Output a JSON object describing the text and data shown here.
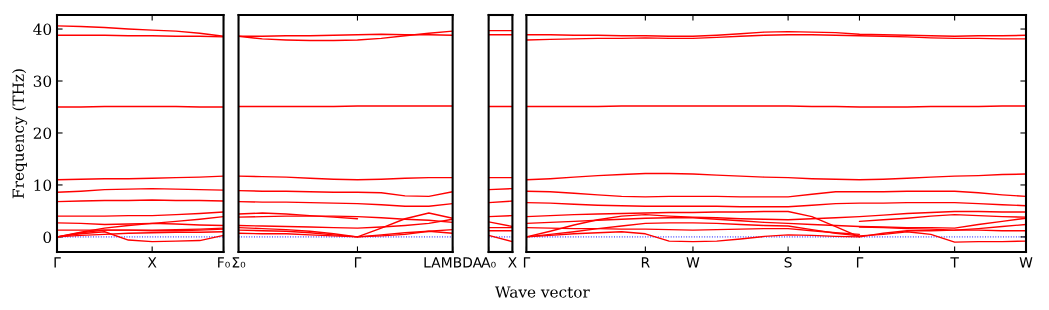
{
  "chart_data": [
    {
      "type": "line",
      "ylabel": "Frequency (THz)",
      "ylim": [
        -2.9,
        42.7
      ],
      "yticks": [
        0,
        10,
        20,
        30,
        40
      ],
      "categories": [
        "Γ",
        null,
        null,
        null,
        "X",
        null,
        null,
        "F₀"
      ],
      "ref_lines": [
        {
          "axis": "y",
          "value": 0,
          "color": "#0000ff",
          "line_style": "dotted"
        }
      ],
      "series": [
        {
          "color": "#ff0000",
          "values": [
            40.6,
            40.5,
            40.3,
            40.0,
            39.8,
            39.6,
            39.2,
            38.6
          ]
        },
        {
          "color": "#ff0000",
          "values": [
            38.8,
            38.8,
            38.8,
            38.7,
            38.7,
            38.6,
            38.6,
            38.5
          ]
        },
        {
          "color": "#ff0000",
          "values": [
            25.0,
            25.0,
            25.1,
            25.1,
            25.1,
            25.1,
            25.0,
            25.0
          ]
        },
        {
          "color": "#ff0000",
          "values": [
            11.0,
            11.1,
            11.2,
            11.2,
            11.3,
            11.4,
            11.5,
            11.7
          ]
        },
        {
          "color": "#ff0000",
          "values": [
            8.6,
            8.8,
            9.1,
            9.2,
            9.3,
            9.2,
            9.1,
            9.0
          ]
        },
        {
          "color": "#ff0000",
          "values": [
            6.8,
            6.9,
            7.0,
            7.0,
            7.1,
            7.0,
            7.0,
            6.9
          ]
        },
        {
          "color": "#ff0000",
          "values": [
            4.0,
            4.0,
            4.0,
            4.1,
            4.1,
            4.3,
            4.5,
            4.8
          ]
        },
        {
          "color": "#ff0000",
          "values": [
            2.7,
            2.6,
            2.4,
            2.5,
            2.6,
            2.5,
            2.3,
            2.2
          ]
        },
        {
          "color": "#ff0000",
          "values": [
            0,
            0.9,
            1.7,
            2.2,
            2.6,
            3.0,
            3.4,
            3.9
          ]
        },
        {
          "color": "#ff0000",
          "values": [
            1.3,
            1.3,
            1.3,
            1.3,
            1.3,
            1.4,
            1.5,
            1.7
          ]
        },
        {
          "color": "#ff0000",
          "values": [
            0,
            0.8,
            1.3,
            1.3,
            1.2,
            1.2,
            1.3,
            1.5
          ]
        },
        {
          "color": "#ff0000",
          "values": [
            0,
            0.6,
            1.0,
            -0.6,
            -0.9,
            -0.8,
            -0.7,
            0.3
          ]
        },
        {
          "color": "#ff0000",
          "values": [
            0,
            0.3,
            0.5,
            0.7,
            0.8,
            0.9,
            0.9,
            1.0
          ]
        }
      ]
    },
    {
      "type": "line",
      "ylim": [
        -2.9,
        42.7
      ],
      "yticks": [
        0,
        10,
        20,
        30,
        40
      ],
      "tick_labels": "x",
      "categories": [
        "Σ₀",
        null,
        null,
        null,
        null,
        "Γ",
        null,
        null,
        null,
        "LAMBDA"
      ],
      "ref_lines": [
        {
          "axis": "y",
          "value": 0,
          "color": "#0000ff",
          "line_style": "dotted"
        }
      ],
      "series": [
        {
          "color": "#ff0000",
          "values": [
            38.6,
            38.1,
            37.9,
            37.8,
            37.8,
            37.9,
            38.2,
            38.7,
            39.2,
            39.6
          ]
        },
        {
          "color": "#ff0000",
          "values": [
            38.6,
            38.6,
            38.7,
            38.7,
            38.8,
            38.9,
            39.0,
            38.9,
            38.9,
            38.8
          ]
        },
        {
          "color": "#ff0000",
          "values": [
            25.1,
            25.1,
            25.1,
            25.1,
            25.1,
            25.2,
            25.2,
            25.2,
            25.2,
            25.2
          ]
        },
        {
          "color": "#ff0000",
          "values": [
            11.7,
            11.6,
            11.5,
            11.3,
            11.1,
            11.0,
            11.1,
            11.3,
            11.4,
            11.4
          ]
        },
        {
          "color": "#ff0000",
          "values": [
            8.9,
            8.8,
            8.8,
            8.7,
            8.6,
            8.6,
            8.5,
            7.9,
            7.8,
            8.7
          ]
        },
        {
          "color": "#ff0000",
          "values": [
            6.8,
            6.7,
            6.7,
            6.6,
            6.5,
            6.4,
            6.2,
            5.9,
            5.9,
            6.4
          ]
        },
        {
          "color": "#ff0000",
          "values": [
            4.4,
            4.6,
            4.4,
            4.1,
            3.8,
            3.5,
            null,
            null,
            null,
            null
          ]
        },
        {
          "color": "#ff0000",
          "values": [
            3.8,
            3.9,
            4.0,
            4.0,
            4.0,
            3.9,
            3.7,
            3.4,
            3.2,
            2.8
          ]
        },
        {
          "color": "#ff0000",
          "values": [
            2.2,
            2.1,
            2.0,
            1.9,
            1.8,
            1.7,
            1.9,
            2.2,
            2.6,
            3.4
          ]
        },
        {
          "color": "#ff0000",
          "values": [
            1.8,
            1.6,
            1.4,
            1.1,
            0.6,
            0,
            1.7,
            3.5,
            4.6,
            3.6
          ]
        },
        {
          "color": "#ff0000",
          "values": [
            1.3,
            1.2,
            1.1,
            0.8,
            0.4,
            0,
            0.4,
            0.8,
            1.1,
            0.7
          ]
        },
        {
          "color": "#ff0000",
          "values": [
            0.7,
            0.6,
            0.6,
            0.4,
            0.2,
            0,
            0.2,
            0.5,
            1.1,
            1.4
          ]
        }
      ]
    },
    {
      "type": "line",
      "ylim": [
        -2.9,
        42.7
      ],
      "yticks": [
        0,
        10,
        20,
        30,
        40
      ],
      "tick_labels": "x",
      "categories": [
        "A₀",
        "X"
      ],
      "ref_lines": [
        {
          "axis": "y",
          "value": 0,
          "color": "#0000ff",
          "line_style": "dotted"
        }
      ],
      "series": [
        {
          "color": "#ff0000",
          "values": [
            39.7,
            39.7
          ]
        },
        {
          "color": "#ff0000",
          "values": [
            38.9,
            38.9
          ]
        },
        {
          "color": "#ff0000",
          "values": [
            25.1,
            25.1
          ]
        },
        {
          "color": "#ff0000",
          "values": [
            11.4,
            11.4
          ]
        },
        {
          "color": "#ff0000",
          "values": [
            9.1,
            9.3
          ]
        },
        {
          "color": "#ff0000",
          "values": [
            6.6,
            6.9
          ]
        },
        {
          "color": "#ff0000",
          "values": [
            3.9,
            4.1
          ]
        },
        {
          "color": "#ff0000",
          "values": [
            2.9,
            2.0
          ]
        },
        {
          "color": "#ff0000",
          "values": [
            1.8,
            1.8
          ]
        },
        {
          "color": "#ff0000",
          "values": [
            1.2,
            1.2
          ]
        },
        {
          "color": "#ff0000",
          "values": [
            0.3,
            -0.9
          ]
        }
      ]
    },
    {
      "type": "line",
      "xlabel": "Wave vector",
      "ylim": [
        -2.9,
        42.7
      ],
      "yticks": [
        0,
        10,
        20,
        30,
        40
      ],
      "tick_labels": "x",
      "categories": [
        "Γ",
        null,
        null,
        null,
        null,
        "R",
        null,
        "W",
        null,
        null,
        null,
        "S",
        null,
        null,
        "Γ",
        null,
        null,
        null,
        "T",
        null,
        null,
        "W"
      ],
      "ref_lines": [
        {
          "axis": "y",
          "value": 0,
          "color": "#0000ff",
          "line_style": "dotted"
        }
      ],
      "series": [
        {
          "color": "#ff0000",
          "values": [
            38.9,
            38.9,
            38.8,
            38.8,
            38.7,
            38.7,
            38.6,
            38.6,
            38.8,
            39.1,
            39.4,
            39.5,
            39.4,
            39.3,
            39.0,
            38.9,
            38.8,
            38.7,
            38.6,
            38.7,
            38.7,
            38.8
          ]
        },
        {
          "color": "#ff0000",
          "values": [
            37.9,
            38.0,
            38.1,
            38.2,
            38.2,
            38.3,
            38.2,
            38.2,
            38.4,
            38.6,
            38.8,
            38.9,
            38.9,
            38.8,
            38.7,
            38.6,
            38.5,
            38.3,
            38.2,
            38.2,
            38.1,
            38.1
          ]
        },
        {
          "color": "#ff0000",
          "values": [
            25.1,
            25.1,
            25.1,
            25.1,
            25.2,
            25.2,
            25.2,
            25.2,
            25.2,
            25.2,
            25.2,
            25.2,
            25.1,
            25.1,
            25.0,
            25.0,
            25.0,
            25.1,
            25.1,
            25.1,
            25.2,
            25.2
          ]
        },
        {
          "color": "#ff0000",
          "values": [
            11.0,
            11.2,
            11.5,
            11.8,
            12.0,
            12.2,
            12.2,
            12.1,
            11.9,
            11.7,
            11.5,
            11.4,
            11.2,
            11.1,
            11.0,
            11.1,
            11.3,
            11.5,
            11.7,
            11.8,
            12.0,
            12.1
          ]
        },
        {
          "color": "#ff0000",
          "values": [
            8.8,
            8.7,
            8.4,
            8.1,
            7.8,
            7.7,
            7.8,
            7.8,
            7.8,
            7.7,
            7.7,
            7.7,
            8.2,
            8.7,
            8.7,
            8.7,
            8.8,
            8.8,
            8.8,
            8.5,
            8.1,
            7.8
          ]
        },
        {
          "color": "#ff0000",
          "values": [
            6.6,
            6.5,
            6.3,
            6.1,
            6.0,
            5.9,
            5.9,
            5.9,
            5.9,
            5.8,
            5.8,
            5.8,
            6.1,
            6.4,
            6.5,
            6.5,
            6.6,
            6.6,
            6.6,
            6.4,
            6.2,
            6.0
          ]
        },
        {
          "color": "#ff0000",
          "values": [
            3.9,
            4.1,
            4.3,
            4.4,
            4.5,
            4.6,
            4.7,
            4.7,
            4.8,
            4.8,
            4.9,
            4.9,
            3.9,
            2.0,
            0,
            0.7,
            1.2,
            1.2,
            1.3,
            1.6,
            2.0,
            2.4
          ]
        },
        {
          "color": "#ff0000",
          "values": [
            0,
            1.1,
            2.3,
            3.3,
            4.0,
            4.3,
            4.0,
            3.8,
            3.7,
            3.5,
            3.4,
            3.3,
            3.5,
            3.7,
            3.9,
            4.2,
            4.5,
            4.7,
            4.9,
            4.9,
            4.8,
            4.8
          ]
        },
        {
          "color": "#ff0000",
          "values": [
            2.6,
            2.8,
            3.0,
            3.2,
            3.4,
            3.6,
            3.7,
            3.7,
            3.4,
            3.1,
            2.8,
            2.6,
            2.4,
            2.2,
            2.0,
            1.9,
            1.8,
            1.8,
            1.7,
            2.4,
            3.0,
            3.6
          ]
        },
        {
          "color": "#ff0000",
          "values": [
            0,
            0.5,
            1.0,
            1.6,
            2.1,
            2.6,
            2.7,
            2.7,
            2.6,
            2.4,
            2.2,
            2.1,
            1.4,
            0.7,
            0.2,
            0.5,
            1.0,
            0.5,
            -1.0,
            -0.9,
            -0.9,
            -0.8
          ]
        },
        {
          "color": "#ff0000",
          "values": [
            0,
            0.3,
            0.6,
            0.8,
            1.0,
            0.6,
            -0.8,
            -0.9,
            -0.8,
            -0.4,
            0.1,
            0.4,
            0.3,
            0.1,
            0,
            null,
            null,
            null,
            null,
            null,
            null,
            null
          ]
        },
        {
          "color": "#ff0000",
          "values": [
            1.8,
            1.7,
            1.6,
            1.6,
            1.5,
            1.5,
            1.4,
            1.3,
            1.4,
            1.5,
            1.6,
            1.6,
            1.2,
            0.8,
            0.5,
            null,
            null,
            null,
            null,
            null,
            null,
            null
          ]
        },
        {
          "color": "#ff0000",
          "values": [
            null,
            null,
            null,
            null,
            null,
            null,
            null,
            null,
            null,
            null,
            null,
            null,
            null,
            null,
            3.0,
            3.3,
            3.6,
            4.0,
            4.3,
            4.1,
            3.9,
            3.8
          ]
        },
        {
          "color": "#ff0000",
          "values": [
            null,
            null,
            null,
            null,
            null,
            null,
            null,
            null,
            null,
            null,
            null,
            null,
            null,
            null,
            1.9,
            1.8,
            1.6,
            1.5,
            1.3,
            1.3,
            1.2,
            1.2
          ]
        }
      ]
    }
  ]
}
